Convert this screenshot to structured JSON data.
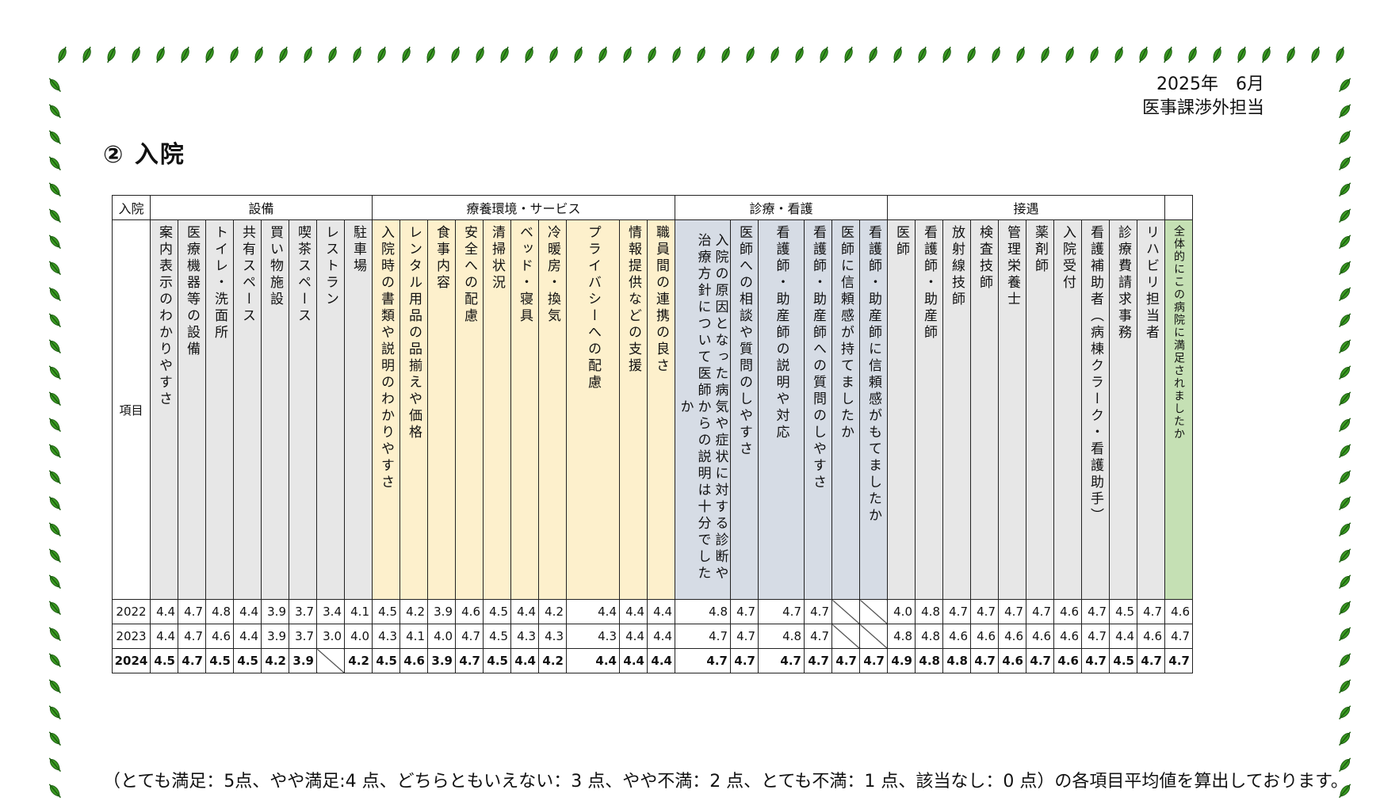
{
  "header": {
    "date": "2025年　6月",
    "department": "医事課渉外担当"
  },
  "section_title": "② 入院",
  "table": {
    "corner_label": "入院",
    "row_label": "項目",
    "groups": [
      "設備",
      "療養環境・サービス",
      "診療・看護",
      "接遇"
    ],
    "items": [
      "案内表示のわかりやすさ",
      "医療機器等の設備",
      "トイレ・洗面所",
      "共有スペース",
      "買い物施設",
      "喫茶スペース",
      "レストラン",
      "駐車場",
      "入院時の書類や説明のわかりやすさ",
      "レンタル用品の品揃えや価格",
      "食事内容",
      "安全への配慮",
      "清掃状況",
      "ベッド・寝具",
      "冷暖房・換気",
      "プライバシーへの配慮",
      "情報提供などの支援",
      "職員間の連携の良さ",
      "入院の原因となった病気や症状に対する診断や治療方針について医師からの説明は十分でしたか",
      "医師への相談や質問のしやすさ",
      "看護師・助産師の説明や対応",
      "看護師・助産師への質問のしやすさ",
      "医師に信頼感が持てましたか",
      "看護師・助産師に信頼感がもてましたか",
      "医師",
      "看護師・助産師",
      "放射線技師",
      "検査技師",
      "管理栄養士",
      "薬剤師",
      "入院受付",
      "看護補助者（病棟クラーク・看護助手）",
      "診療費請求事務",
      "リハビリ担当者",
      "全体的にこの病院に満足されましたか"
    ],
    "rows": [
      {
        "year": "2022",
        "values": [
          "4.4",
          "4.7",
          "4.8",
          "4.4",
          "3.9",
          "3.7",
          "3.4",
          "4.1",
          "4.5",
          "4.2",
          "3.9",
          "4.6",
          "4.5",
          "4.4",
          "4.2",
          "4.4",
          "4.4",
          "4.4",
          "4.8",
          "4.7",
          "4.7",
          "4.7",
          "",
          "",
          "4.0",
          "4.8",
          "4.7",
          "4.7",
          "4.7",
          "4.7",
          "4.6",
          "4.7",
          "4.5",
          "4.7",
          "4.6"
        ]
      },
      {
        "year": "2023",
        "values": [
          "4.4",
          "4.7",
          "4.6",
          "4.4",
          "3.9",
          "3.7",
          "3.0",
          "4.0",
          "4.3",
          "4.1",
          "4.0",
          "4.7",
          "4.5",
          "4.3",
          "4.3",
          "4.3",
          "4.4",
          "4.4",
          "4.7",
          "4.7",
          "4.8",
          "4.7",
          "",
          "",
          "4.8",
          "4.8",
          "4.6",
          "4.6",
          "4.6",
          "4.6",
          "4.6",
          "4.7",
          "4.4",
          "4.6",
          "4.7"
        ]
      },
      {
        "year": "2024",
        "values": [
          "4.5",
          "4.7",
          "4.5",
          "4.5",
          "4.2",
          "3.9",
          "",
          "4.2",
          "4.5",
          "4.6",
          "3.9",
          "4.7",
          "4.5",
          "4.4",
          "4.2",
          "4.4",
          "4.4",
          "4.4",
          "4.7",
          "4.7",
          "4.7",
          "4.7",
          "4.7",
          "4.7",
          "4.9",
          "4.8",
          "4.8",
          "4.7",
          "4.6",
          "4.7",
          "4.6",
          "4.7",
          "4.5",
          "4.7",
          "4.7"
        ]
      }
    ]
  },
  "footnote": "（とても満足：5点、やや満足:4 点、どちらともいえない：3 点、やや不満：2 点、とても不満：1 点、該当なし：0 点）の各項目平均値を算出しております。",
  "colors": {
    "facility": "#e7e7e7",
    "service": "#fdf0cc",
    "medical": "#d6dce5",
    "hospitality": "#e7e7e7",
    "overall": "#c5e0b4",
    "border_vine": "#3a9a22"
  }
}
